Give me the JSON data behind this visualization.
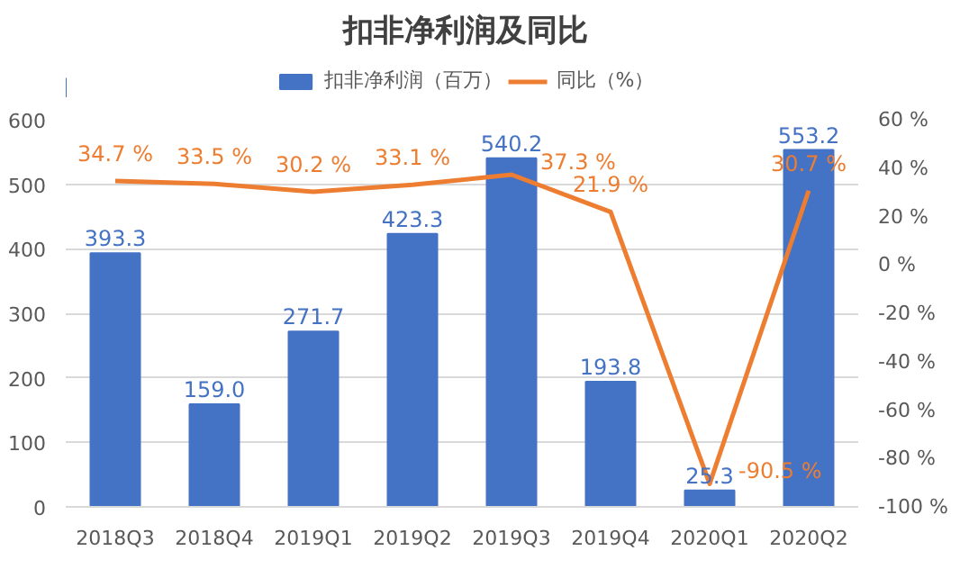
{
  "chart_data": {
    "type": "bar",
    "title": "扣非净利润及同比",
    "categories": [
      "2018Q3",
      "2018Q4",
      "2019Q1",
      "2019Q2",
      "2019Q3",
      "2019Q4",
      "2020Q1",
      "2020Q2"
    ],
    "series": [
      {
        "name": "扣非净利润（百万）",
        "color": "#4472c4",
        "values": [
          393.3,
          159.0,
          271.7,
          423.3,
          540.2,
          193.8,
          25.3,
          553.2
        ],
        "value_labels": [
          "393.3",
          "159.0",
          "271.7",
          "423.3",
          "540.2",
          "193.8",
          "25.3",
          "553.2"
        ]
      },
      {
        "name": "同比（%）",
        "type": "line",
        "axis": "y2",
        "color": "#ed7d31",
        "values": [
          34.7,
          33.5,
          30.2,
          33.1,
          37.3,
          21.9,
          -90.5,
          30.7
        ],
        "value_labels": [
          "34.7 %",
          "33.5 %",
          "30.2 %",
          "33.1 %",
          "37.3 %",
          "21.9 %",
          "-90.5 %",
          "30.7 %"
        ]
      }
    ],
    "ylim": [
      0,
      600
    ],
    "yticks": [
      0,
      100,
      200,
      300,
      400,
      500,
      600
    ],
    "y2lim": [
      -100,
      60
    ],
    "y2ticks": [
      {
        "value": -100,
        "label": "-100 %"
      },
      {
        "value": -80,
        "label": "-80 %"
      },
      {
        "value": -60,
        "label": "-60 %"
      },
      {
        "value": -40,
        "label": "-40 %"
      },
      {
        "value": -20,
        "label": "-20 %"
      },
      {
        "value": 0,
        "label": "0 %"
      },
      {
        "value": 20,
        "label": "20 %"
      },
      {
        "value": 40,
        "label": "40 %"
      },
      {
        "value": 60,
        "label": "60 %"
      }
    ],
    "grid": "y",
    "legend": "top",
    "marker": "none",
    "line_style": "solid"
  }
}
